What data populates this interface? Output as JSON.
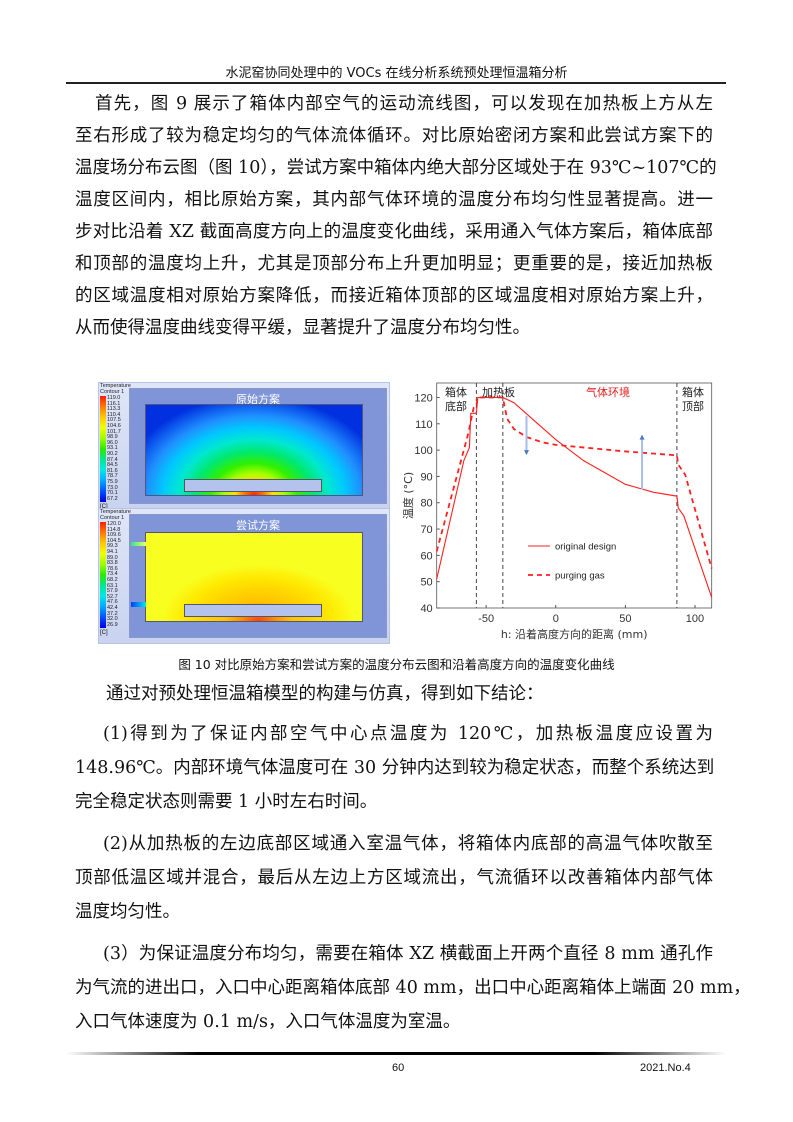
{
  "header": {
    "title": "水泥窑协同处理中的 VOCs 在线分析系统预处理恒温箱分析"
  },
  "paragraphs": [
    {
      "lines": [
        "首先，图 9 展示了箱体内部空气的运动流线图，可以发现在加热板上方从左",
        "至右形成了较为稳定均匀的气体流体循环。对比原始密闭方案和此尝试方案下的",
        "温度场分布云图（图 10），尝试方案中箱体内绝大部分区域处于在 93℃~107℃的",
        "温度区间内，相比原始方案，其内部气体环境的温度分布均匀性显著提高。进一",
        "步对比沿着 XZ 截面高度方向上的温度变化曲线，采用通入气体方案后，箱体底部",
        "和顶部的温度均上升，尤其是顶部分布上升更加明显；更重要的是，接近加热板",
        "的区域温度相对原始方案降低，而接近箱体顶部的区域温度相对原始方案上升，",
        "从而使得温度曲线变得平缓，显著提升了温度分布均匀性。"
      ]
    },
    {
      "lines": [
        "通过对预处理恒温箱模型的构建与仿真，得到如下结论："
      ]
    },
    {
      "lines": [
        "(1)得到为了保证内部空气中心点温度为 120℃，加热板温度应设置为",
        "148.96℃。内部环境气体温度可在 30 分钟内达到较为稳定状态，而整个系统达到",
        "完全稳定状态则需要 1 小时左右时间。"
      ]
    },
    {
      "lines": [
        "(2)从加热板的左边底部区域通入室温气体，将箱体内底部的高温气体吹散至",
        "顶部低温区域并混合，最后从左边上方区域流出，气流循环以改善箱体内部气体",
        "温度均匀性。"
      ]
    },
    {
      "lines": [
        "(3）为保证温度分布均匀，需要在箱体 XZ 横截面上开两个直径 8 mm 通孔作",
        "为气流的进出口，入口中心距离箱体底部 40 mm，出口中心距离箱体上端面 20 mm，",
        "入口气体速度为 0.1 m/s，入口气体温度为室温。"
      ]
    }
  ],
  "figure": {
    "caption": "图 10 对比原始方案和尝试方案的温度分布云图和沿着高度方向的温度变化曲线",
    "contours": [
      {
        "title": "原始方案",
        "legend_title": "Temperature",
        "legend_sub": "Contour 1",
        "unit": "[C]",
        "values": [
          "119.0",
          "116.1",
          "113.3",
          "110.4",
          "107.5",
          "104.6",
          "101.7",
          "98.9",
          "96.0",
          "93.1",
          "90.2",
          "87.4",
          "84.5",
          "81.6",
          "78.7",
          "75.9",
          "73.0",
          "70.1",
          "67.2"
        ]
      },
      {
        "title": "尝试方案",
        "legend_title": "Temperature",
        "legend_sub": "Contour 1",
        "unit": "[C]",
        "values": [
          "120.0",
          "114.8",
          "109.6",
          "104.5",
          "99.3",
          "94.1",
          "89.0",
          "83.8",
          "78.6",
          "73.4",
          "68.2",
          "63.1",
          "57.9",
          "52.7",
          "47.6",
          "42.4",
          "37.2",
          "32.0",
          "26.9"
        ]
      }
    ]
  },
  "chart_data": {
    "type": "line",
    "xlabel": "h: 沿着高度方向的距离 (mm)",
    "ylabel": "温度 (°C)",
    "xlim": [
      -85.5,
      112
    ],
    "ylim": [
      40,
      125.5
    ],
    "xticks": [
      -50,
      0,
      50,
      100
    ],
    "yticks": [
      40,
      50,
      60,
      70,
      80,
      90,
      100,
      110,
      120
    ],
    "grid": false,
    "legend_position": "center-bottom",
    "region_labels": [
      {
        "text": "箱体\n底部",
        "color": "#222222"
      },
      {
        "text": "加热板",
        "color": "#222222"
      },
      {
        "text": "气体环境",
        "color": "#e02020"
      },
      {
        "text": "箱体\n顶部",
        "color": "#222222"
      }
    ],
    "dividers_x": [
      -57,
      -38,
      87
    ],
    "arrows": [
      {
        "x": -21,
        "from": 113,
        "to": 100,
        "color": "#4a78c8"
      },
      {
        "x": 62,
        "from": 85,
        "to": 104,
        "color": "#4a78c8"
      }
    ],
    "series": [
      {
        "name": "original design",
        "style": "solid",
        "color": "#ff2020",
        "x": [
          -85.5,
          -66,
          -62,
          -61,
          -57,
          -56,
          -38,
          -30,
          -15,
          0,
          20,
          50,
          70,
          87,
          88,
          92,
          112
        ],
        "y": [
          51,
          96,
          101,
          114,
          114,
          120,
          120,
          118,
          111,
          104,
          96,
          87,
          84,
          82.5,
          78,
          75,
          44
        ]
      },
      {
        "name": "purging gas",
        "style": "dashed",
        "color": "#ff2020",
        "x": [
          -85.5,
          -63,
          -59,
          -57,
          -56,
          -38,
          -35,
          -30,
          -21,
          -10,
          0,
          50,
          87,
          88,
          93,
          112
        ],
        "y": [
          61.5,
          106,
          116,
          117,
          120,
          120,
          112,
          108,
          105,
          103,
          102,
          99.5,
          98,
          94.5,
          90.6,
          55
        ]
      }
    ]
  },
  "footer": {
    "page": "60",
    "issue": "2021.No.4"
  }
}
